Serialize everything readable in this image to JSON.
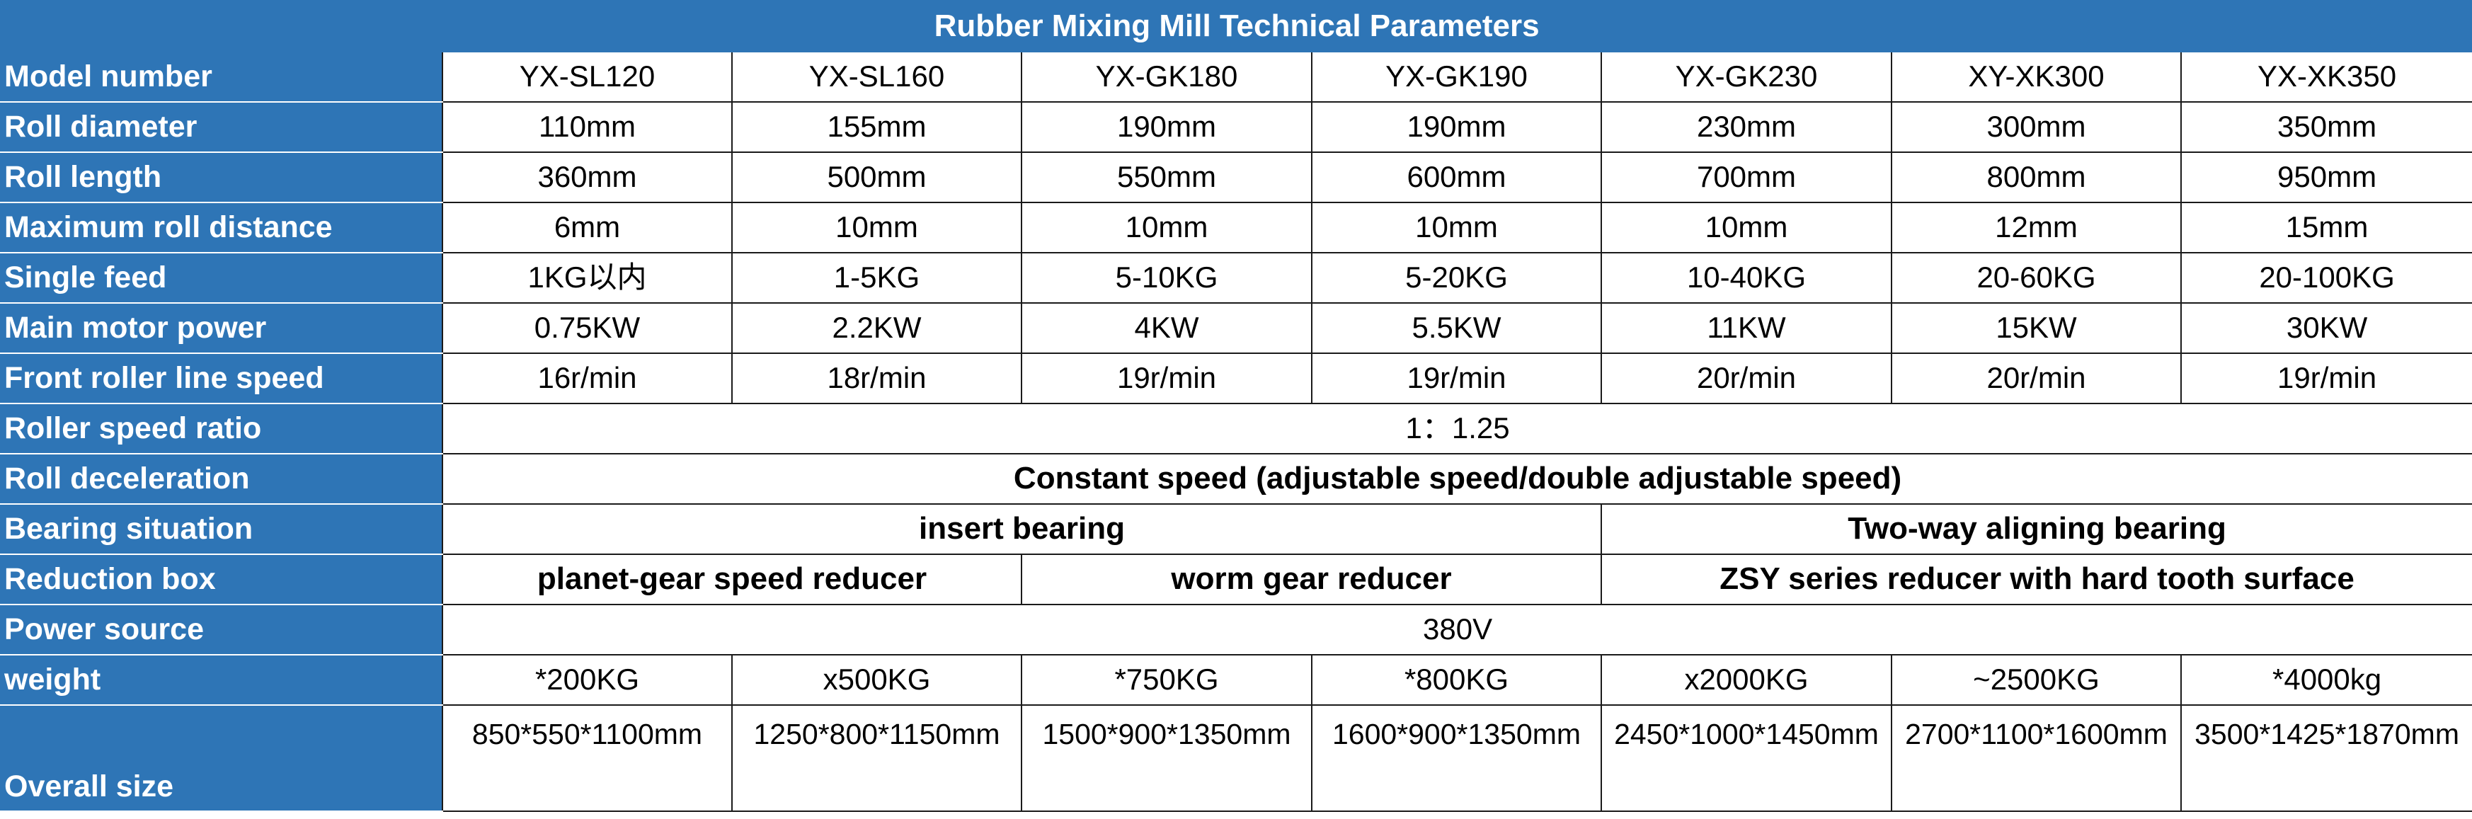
{
  "title": "Rubber Mixing Mill Technical Parameters",
  "rows": {
    "model": {
      "label": "Model number",
      "values": [
        "YX-SL120",
        "YX-SL160",
        "YX-GK180",
        "YX-GK190",
        "YX-GK230",
        "XY-XK300",
        "YX-XK350"
      ]
    },
    "roll_diameter": {
      "label": "Roll diameter",
      "values": [
        "110mm",
        "155mm",
        "190mm",
        "190mm",
        "230mm",
        "300mm",
        "350mm"
      ]
    },
    "roll_length": {
      "label": "Roll length",
      "values": [
        "360mm",
        "500mm",
        "550mm",
        "600mm",
        "700mm",
        "800mm",
        "950mm"
      ]
    },
    "max_roll_distance": {
      "label": "Maximum roll distance",
      "values": [
        "6mm",
        "10mm",
        "10mm",
        "10mm",
        "10mm",
        "12mm",
        "15mm"
      ]
    },
    "single_feed": {
      "label": "Single feed",
      "values": [
        "1KG以内",
        "1-5KG",
        "5-10KG",
        "5-20KG",
        "10-40KG",
        "20-60KG",
        "20-100KG"
      ]
    },
    "main_motor_power": {
      "label": "Main motor power",
      "values": [
        "0.75KW",
        "2.2KW",
        "4KW",
        "5.5KW",
        "11KW",
        "15KW",
        "30KW"
      ]
    },
    "front_roller_speed": {
      "label": "Front roller line speed",
      "values": [
        "16r/min",
        "18r/min",
        "19r/min",
        "19r/min",
        "20r/min",
        "20r/min",
        "19r/min"
      ]
    },
    "roller_speed_ratio": {
      "label": "Roller speed ratio",
      "value": "1：1.25"
    },
    "roll_deceleration": {
      "label": "Roll deceleration",
      "value": "Constant speed (adjustable speed/double adjustable speed)"
    },
    "bearing_situation": {
      "label": "Bearing situation",
      "group1": "insert bearing",
      "group2": "Two-way aligning bearing"
    },
    "reduction_box": {
      "label": "Reduction box",
      "group1": "planet-gear speed reducer",
      "group2": "worm gear reducer",
      "group3": "ZSY series reducer with hard tooth surface"
    },
    "power_source": {
      "label": "Power source",
      "value": "380V"
    },
    "weight": {
      "label": "weight",
      "values": [
        "*200KG",
        "x500KG",
        "*750KG",
        "*800KG",
        "x2000KG",
        "~2500KG",
        "*4000kg"
      ]
    },
    "overall_size": {
      "label": "Overall size",
      "values": [
        "850*550*1100mm",
        "1250*800*1150mm",
        "1500*900*1350mm",
        "1600*900*1350mm",
        "2450*1000*1450mm",
        "2700*1100*1600mm",
        "3500*1425*1870mm"
      ]
    }
  }
}
